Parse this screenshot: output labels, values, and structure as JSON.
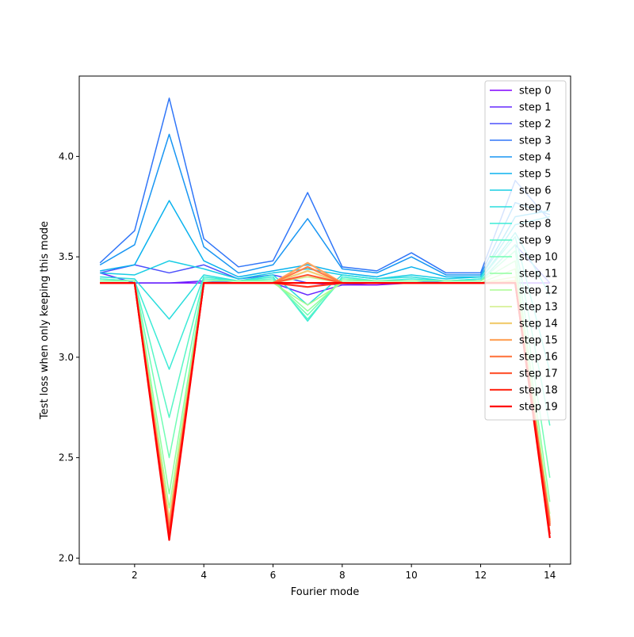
{
  "chart_data": {
    "type": "line",
    "title": "",
    "xlabel": "Fourier mode",
    "ylabel": "Test loss when only keeping this mode",
    "xlim": [
      0.4,
      14.6
    ],
    "ylim": [
      1.97,
      4.4
    ],
    "xticks": [
      2,
      4,
      6,
      8,
      10,
      12,
      14
    ],
    "yticks": [
      2.0,
      2.5,
      3.0,
      3.5,
      4.0
    ],
    "ytick_labels": [
      "2.0",
      "2.5",
      "3.0",
      "3.5",
      "4.0"
    ],
    "grid": false,
    "legend_position": "top-right",
    "x": [
      1,
      2,
      3,
      4,
      5,
      6,
      7,
      8,
      9,
      10,
      11,
      12,
      13,
      14
    ],
    "series": [
      {
        "name": "step 0",
        "color": "#8000ff",
        "values": [
          3.37,
          3.37,
          3.37,
          3.37,
          3.37,
          3.37,
          3.37,
          3.36,
          3.36,
          3.37,
          3.37,
          3.37,
          3.37,
          3.37
        ]
      },
      {
        "name": "step 1",
        "color": "#6629fe",
        "values": [
          3.42,
          3.37,
          3.37,
          3.38,
          3.37,
          3.37,
          3.31,
          3.36,
          3.37,
          3.37,
          3.37,
          3.37,
          3.37,
          3.37
        ]
      },
      {
        "name": "step 2",
        "color": "#4c50fc",
        "values": [
          3.42,
          3.46,
          3.42,
          3.46,
          3.39,
          3.41,
          3.37,
          3.37,
          3.37,
          3.37,
          3.38,
          3.38,
          3.56,
          3.37
        ]
      },
      {
        "name": "step 3",
        "color": "#3176f8",
        "values": [
          3.47,
          3.63,
          4.29,
          3.59,
          3.45,
          3.48,
          3.82,
          3.45,
          3.43,
          3.52,
          3.42,
          3.42,
          3.88,
          3.68
        ]
      },
      {
        "name": "step 4",
        "color": "#1996f3",
        "values": [
          3.46,
          3.56,
          4.11,
          3.55,
          3.42,
          3.46,
          3.69,
          3.44,
          3.42,
          3.5,
          3.41,
          3.41,
          3.77,
          3.71
        ]
      },
      {
        "name": "step 5",
        "color": "#0ab2ee",
        "values": [
          3.43,
          3.46,
          3.78,
          3.48,
          3.4,
          3.43,
          3.46,
          3.42,
          3.4,
          3.45,
          3.4,
          3.4,
          3.7,
          3.73
        ]
      },
      {
        "name": "step 6",
        "color": "#18cde4",
        "values": [
          3.42,
          3.41,
          3.48,
          3.44,
          3.39,
          3.42,
          3.44,
          3.41,
          3.39,
          3.41,
          3.39,
          3.4,
          3.66,
          3.7
        ]
      },
      {
        "name": "step 7",
        "color": "#2adddd",
        "values": [
          3.4,
          3.39,
          3.19,
          3.41,
          3.38,
          3.41,
          3.26,
          3.41,
          3.39,
          3.4,
          3.38,
          3.39,
          3.62,
          3.31
        ]
      },
      {
        "name": "step 8",
        "color": "#3cebd6",
        "values": [
          3.39,
          3.38,
          2.94,
          3.4,
          3.38,
          3.4,
          3.18,
          3.4,
          3.38,
          3.39,
          3.38,
          3.39,
          3.6,
          2.93
        ]
      },
      {
        "name": "step 9",
        "color": "#58f6c5",
        "values": [
          3.39,
          3.38,
          2.7,
          3.39,
          3.38,
          3.39,
          3.19,
          3.39,
          3.38,
          3.38,
          3.38,
          3.38,
          3.56,
          2.66
        ]
      },
      {
        "name": "step 10",
        "color": "#72fdb4",
        "values": [
          3.38,
          3.38,
          2.5,
          3.38,
          3.38,
          3.38,
          3.21,
          3.39,
          3.38,
          3.38,
          3.38,
          3.38,
          3.53,
          2.4
        ]
      },
      {
        "name": "step 11",
        "color": "#90fea0",
        "values": [
          3.38,
          3.38,
          2.32,
          3.38,
          3.38,
          3.38,
          3.23,
          3.38,
          3.38,
          3.38,
          3.38,
          3.38,
          3.48,
          2.28
        ]
      },
      {
        "name": "step 12",
        "color": "#aafb90",
        "values": [
          3.37,
          3.37,
          2.25,
          3.37,
          3.37,
          3.37,
          3.26,
          3.37,
          3.37,
          3.37,
          3.37,
          3.37,
          3.44,
          2.22
        ]
      },
      {
        "name": "step 13",
        "color": "#d0ed85",
        "values": [
          3.37,
          3.37,
          2.2,
          3.37,
          3.37,
          3.37,
          3.4,
          3.37,
          3.37,
          3.37,
          3.37,
          3.37,
          3.4,
          2.2
        ]
      },
      {
        "name": "step 14",
        "color": "#f2cd73",
        "values": [
          3.37,
          3.37,
          2.18,
          3.37,
          3.37,
          3.37,
          3.43,
          3.37,
          3.37,
          3.37,
          3.37,
          3.37,
          3.38,
          2.19
        ]
      },
      {
        "name": "step 15",
        "color": "#ffa55e",
        "values": [
          3.37,
          3.37,
          2.16,
          3.37,
          3.37,
          3.37,
          3.47,
          3.37,
          3.37,
          3.37,
          3.37,
          3.37,
          3.37,
          2.18
        ]
      },
      {
        "name": "step 16",
        "color": "#ff7d4a",
        "values": [
          3.37,
          3.37,
          2.14,
          3.37,
          3.37,
          3.37,
          3.45,
          3.37,
          3.37,
          3.37,
          3.37,
          3.37,
          3.37,
          2.17
        ]
      },
      {
        "name": "step 17",
        "color": "#ff5a36",
        "values": [
          3.37,
          3.37,
          2.12,
          3.37,
          3.37,
          3.37,
          3.41,
          3.37,
          3.37,
          3.37,
          3.37,
          3.37,
          3.37,
          2.16
        ]
      },
      {
        "name": "step 18",
        "color": "#ff3221",
        "values": [
          3.37,
          3.37,
          2.11,
          3.37,
          3.37,
          3.37,
          3.35,
          3.37,
          3.37,
          3.37,
          3.37,
          3.37,
          3.37,
          2.12
        ]
      },
      {
        "name": "step 19",
        "color": "#ff0000",
        "values": [
          3.37,
          3.37,
          2.09,
          3.37,
          3.37,
          3.37,
          3.37,
          3.37,
          3.37,
          3.37,
          3.37,
          3.37,
          3.37,
          2.1
        ]
      }
    ]
  }
}
